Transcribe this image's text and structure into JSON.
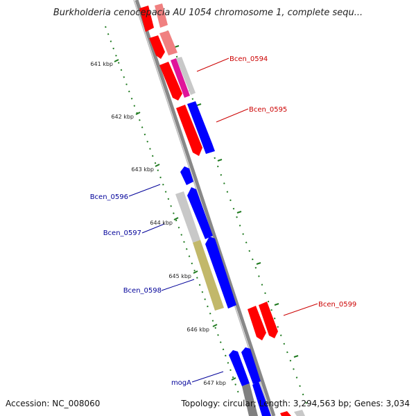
{
  "title": "Burkholderia cenocepacia AU 1054 chromosome 1, complete sequ...",
  "scale_labels": [
    "641 kbp",
    "642 kbp",
    "643 kbp",
    "644 kbp",
    "645 kbp",
    "646 kbp",
    "647 kbp"
  ],
  "gene_labels": {
    "bcen_0594": "Bcen_0594",
    "bcen_0595": "Bcen_0595",
    "bcen_0596": "Bcen_0596",
    "bcen_0597": "Bcen_0597",
    "bcen_0598": "Bcen_0598",
    "bcen_0599": "Bcen_0599",
    "moga": "mogA"
  },
  "footer": {
    "accession": "Accession: NC_008060",
    "summary": "Topology: circular; Length: 3,294,563 bp; Genes: 3,034"
  },
  "colors": {
    "forward_strand": "#ff0000",
    "forward_light": "#f08080",
    "reverse_strand": "#0000ff",
    "pseudo_gray": "#c8c8c8",
    "olive": "#c2b86a",
    "magenta": "#e0149a",
    "backbone": "#888888",
    "ticks": "#1f7a1f"
  }
}
